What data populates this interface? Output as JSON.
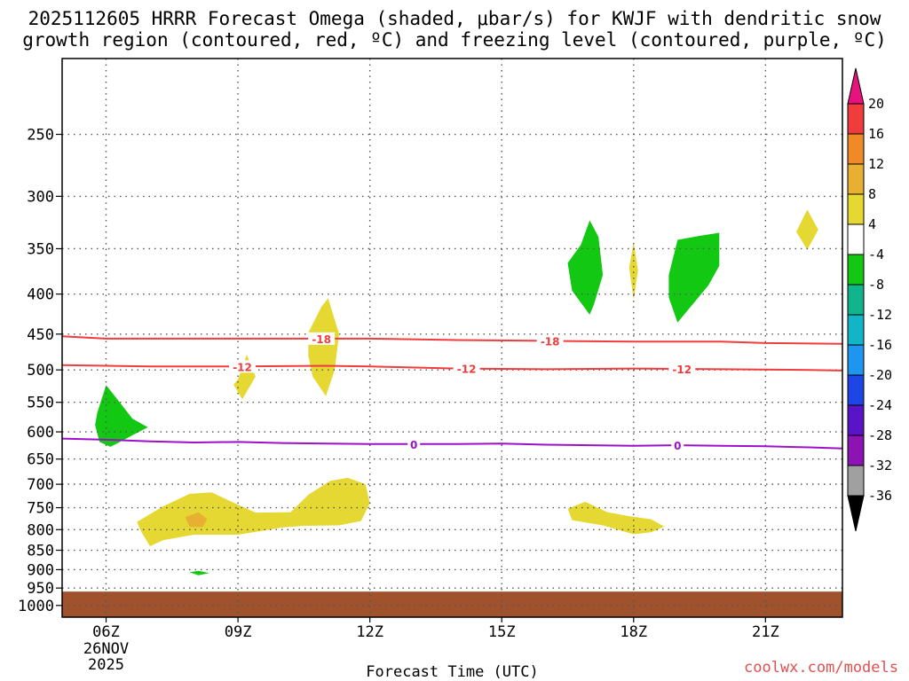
{
  "title": {
    "line1": "2025112605 HRRR Forecast Omega (shaded, μbar/s) for KWJF with dendritic snow",
    "line2": "growth region (contoured, red, ºC) and freezing level (contoured, purple, ºC)"
  },
  "credit": "coolwx.com/models",
  "chart_data": {
    "type": "time-height cross-section",
    "xlabel": "Forecast Time (UTC)",
    "x_ticks": [
      "06Z",
      "09Z",
      "12Z",
      "15Z",
      "18Z",
      "21Z"
    ],
    "x_tick_hours": [
      6,
      9,
      12,
      15,
      18,
      21
    ],
    "x_date_label": [
      "26NOV",
      "2025"
    ],
    "xlim_hours": [
      5,
      22.75
    ],
    "y_ticks": [
      250,
      300,
      350,
      400,
      450,
      500,
      550,
      600,
      650,
      700,
      750,
      800,
      850,
      900,
      950,
      1000
    ],
    "ylim_hpa": [
      200,
      1035
    ],
    "y_scale": "log-pressure",
    "grid": true,
    "ground_level_hpa": 960,
    "ground_color": "#a0522d",
    "colorbar": {
      "levels": [
        20,
        16,
        12,
        8,
        4,
        -4,
        -8,
        -12,
        -16,
        -20,
        -24,
        -28,
        -32,
        -36
      ],
      "colors": [
        "#e8127f",
        "#f03c3c",
        "#f08a28",
        "#e8b032",
        "#e6d832",
        "#ffffff",
        "#12c812",
        "#12b48c",
        "#12b4c8",
        "#1e96f0",
        "#1e46e6",
        "#5a14c8",
        "#8c14b4",
        "#a0a0a0",
        "#000000"
      ]
    },
    "contours": [
      {
        "kind": "dendritic",
        "label": "-18",
        "color": "#f03c3c",
        "points": [
          [
            5,
            453
          ],
          [
            6,
            456
          ],
          [
            8,
            456
          ],
          [
            10,
            456
          ],
          [
            12,
            456
          ],
          [
            14,
            458
          ],
          [
            16,
            459
          ],
          [
            18,
            460
          ],
          [
            20,
            460
          ],
          [
            21,
            462
          ],
          [
            22.75,
            463
          ]
        ],
        "label_hours": [
          10.9,
          16.1
        ]
      },
      {
        "kind": "dendritic",
        "label": "-12",
        "color": "#f03c3c",
        "points": [
          [
            5,
            493
          ],
          [
            7,
            495
          ],
          [
            9,
            495
          ],
          [
            11,
            494
          ],
          [
            12,
            495
          ],
          [
            14,
            498
          ],
          [
            16,
            499
          ],
          [
            18,
            498
          ],
          [
            20,
            499
          ],
          [
            22,
            500
          ],
          [
            22.75,
            501
          ]
        ],
        "label_hours": [
          9.1,
          14.2,
          19.1
        ]
      },
      {
        "kind": "freezing",
        "label": "0",
        "color": "#9b10c8",
        "points": [
          [
            5,
            612
          ],
          [
            6,
            614
          ],
          [
            7,
            617
          ],
          [
            8,
            619
          ],
          [
            9,
            618
          ],
          [
            10,
            620
          ],
          [
            11,
            621
          ],
          [
            12,
            622
          ],
          [
            13,
            622
          ],
          [
            14,
            622
          ],
          [
            15,
            621
          ],
          [
            16,
            623
          ],
          [
            17,
            624
          ],
          [
            18,
            625
          ],
          [
            19,
            624
          ],
          [
            20,
            625
          ],
          [
            21,
            626
          ],
          [
            22,
            628
          ],
          [
            22.75,
            630
          ]
        ],
        "label_hours": [
          13.0,
          19.0
        ]
      }
    ],
    "omega_regions": [
      {
        "value": 6,
        "color": "#e6d832",
        "points": [
          [
            6.7,
            782
          ],
          [
            7.3,
            747
          ],
          [
            7.9,
            720
          ],
          [
            8.4,
            717
          ],
          [
            8.9,
            739
          ],
          [
            9.4,
            761
          ],
          [
            10.2,
            760
          ],
          [
            10.6,
            722
          ],
          [
            11.1,
            693
          ],
          [
            11.5,
            687
          ],
          [
            11.9,
            700
          ],
          [
            12.0,
            740
          ],
          [
            11.8,
            780
          ],
          [
            11.3,
            790
          ],
          [
            10.5,
            791
          ],
          [
            10.0,
            795
          ],
          [
            9.6,
            802
          ],
          [
            9.0,
            812
          ],
          [
            8.0,
            812
          ],
          [
            7.3,
            825
          ],
          [
            7.0,
            840
          ],
          [
            6.8,
            805
          ]
        ]
      },
      {
        "value": 10,
        "color": "#e8b032",
        "points": [
          [
            7.8,
            771
          ],
          [
            8.1,
            760
          ],
          [
            8.3,
            775
          ],
          [
            8.2,
            794
          ],
          [
            7.9,
            794
          ]
        ]
      },
      {
        "value": -6,
        "color": "#12c812",
        "points": [
          [
            5.8,
            567
          ],
          [
            6.0,
            523
          ],
          [
            6.2,
            540
          ],
          [
            6.6,
            577
          ],
          [
            6.95,
            592
          ],
          [
            6.6,
            606
          ],
          [
            6.1,
            627
          ],
          [
            5.85,
            618
          ],
          [
            5.75,
            588
          ]
        ]
      },
      {
        "value": 6,
        "color": "#e6d832",
        "points": [
          [
            9.0,
            514
          ],
          [
            9.2,
            478
          ],
          [
            9.4,
            510
          ],
          [
            9.1,
            545
          ],
          [
            8.9,
            522
          ]
        ]
      },
      {
        "value": 6,
        "color": "#e6d832",
        "points": [
          [
            10.6,
            448
          ],
          [
            10.9,
            415
          ],
          [
            11.05,
            405
          ],
          [
            11.3,
            450
          ],
          [
            11.2,
            500
          ],
          [
            11.0,
            540
          ],
          [
            10.7,
            510
          ],
          [
            10.6,
            480
          ]
        ]
      },
      {
        "value": 6,
        "color": "#e6d832",
        "points": [
          [
            16.5,
            752
          ],
          [
            16.9,
            737
          ],
          [
            17.4,
            760
          ],
          [
            17.9,
            769
          ],
          [
            18.4,
            776
          ],
          [
            18.7,
            793
          ],
          [
            18.4,
            806
          ],
          [
            18.0,
            811
          ],
          [
            17.3,
            790
          ],
          [
            16.6,
            778
          ]
        ]
      },
      {
        "value": -6,
        "color": "#12c812",
        "points": [
          [
            16.5,
            365
          ],
          [
            16.8,
            346
          ],
          [
            17.0,
            322
          ],
          [
            17.2,
            338
          ],
          [
            17.3,
            378
          ],
          [
            17.1,
            412
          ],
          [
            17.0,
            425
          ],
          [
            16.6,
            396
          ]
        ]
      },
      {
        "value": 6,
        "color": "#e6d832",
        "points": [
          [
            17.9,
            370
          ],
          [
            18.0,
            343
          ],
          [
            18.1,
            373
          ],
          [
            18.0,
            407
          ]
        ]
      },
      {
        "value": -6,
        "color": "#12c812",
        "points": [
          [
            18.8,
            378
          ],
          [
            19.0,
            341
          ],
          [
            19.5,
            337
          ],
          [
            19.95,
            334
          ],
          [
            19.95,
            368
          ],
          [
            19.7,
            390
          ],
          [
            19.3,
            415
          ],
          [
            19.0,
            435
          ],
          [
            18.8,
            404
          ]
        ]
      },
      {
        "value": 6,
        "color": "#e6d832",
        "points": [
          [
            21.7,
            333
          ],
          [
            21.95,
            312
          ],
          [
            22.2,
            331
          ],
          [
            21.95,
            351
          ]
        ]
      },
      {
        "value": -6,
        "color": "#12c812",
        "points": [
          [
            7.9,
            907
          ],
          [
            8.1,
            903
          ],
          [
            8.35,
            909
          ],
          [
            8.1,
            915
          ]
        ]
      }
    ]
  }
}
